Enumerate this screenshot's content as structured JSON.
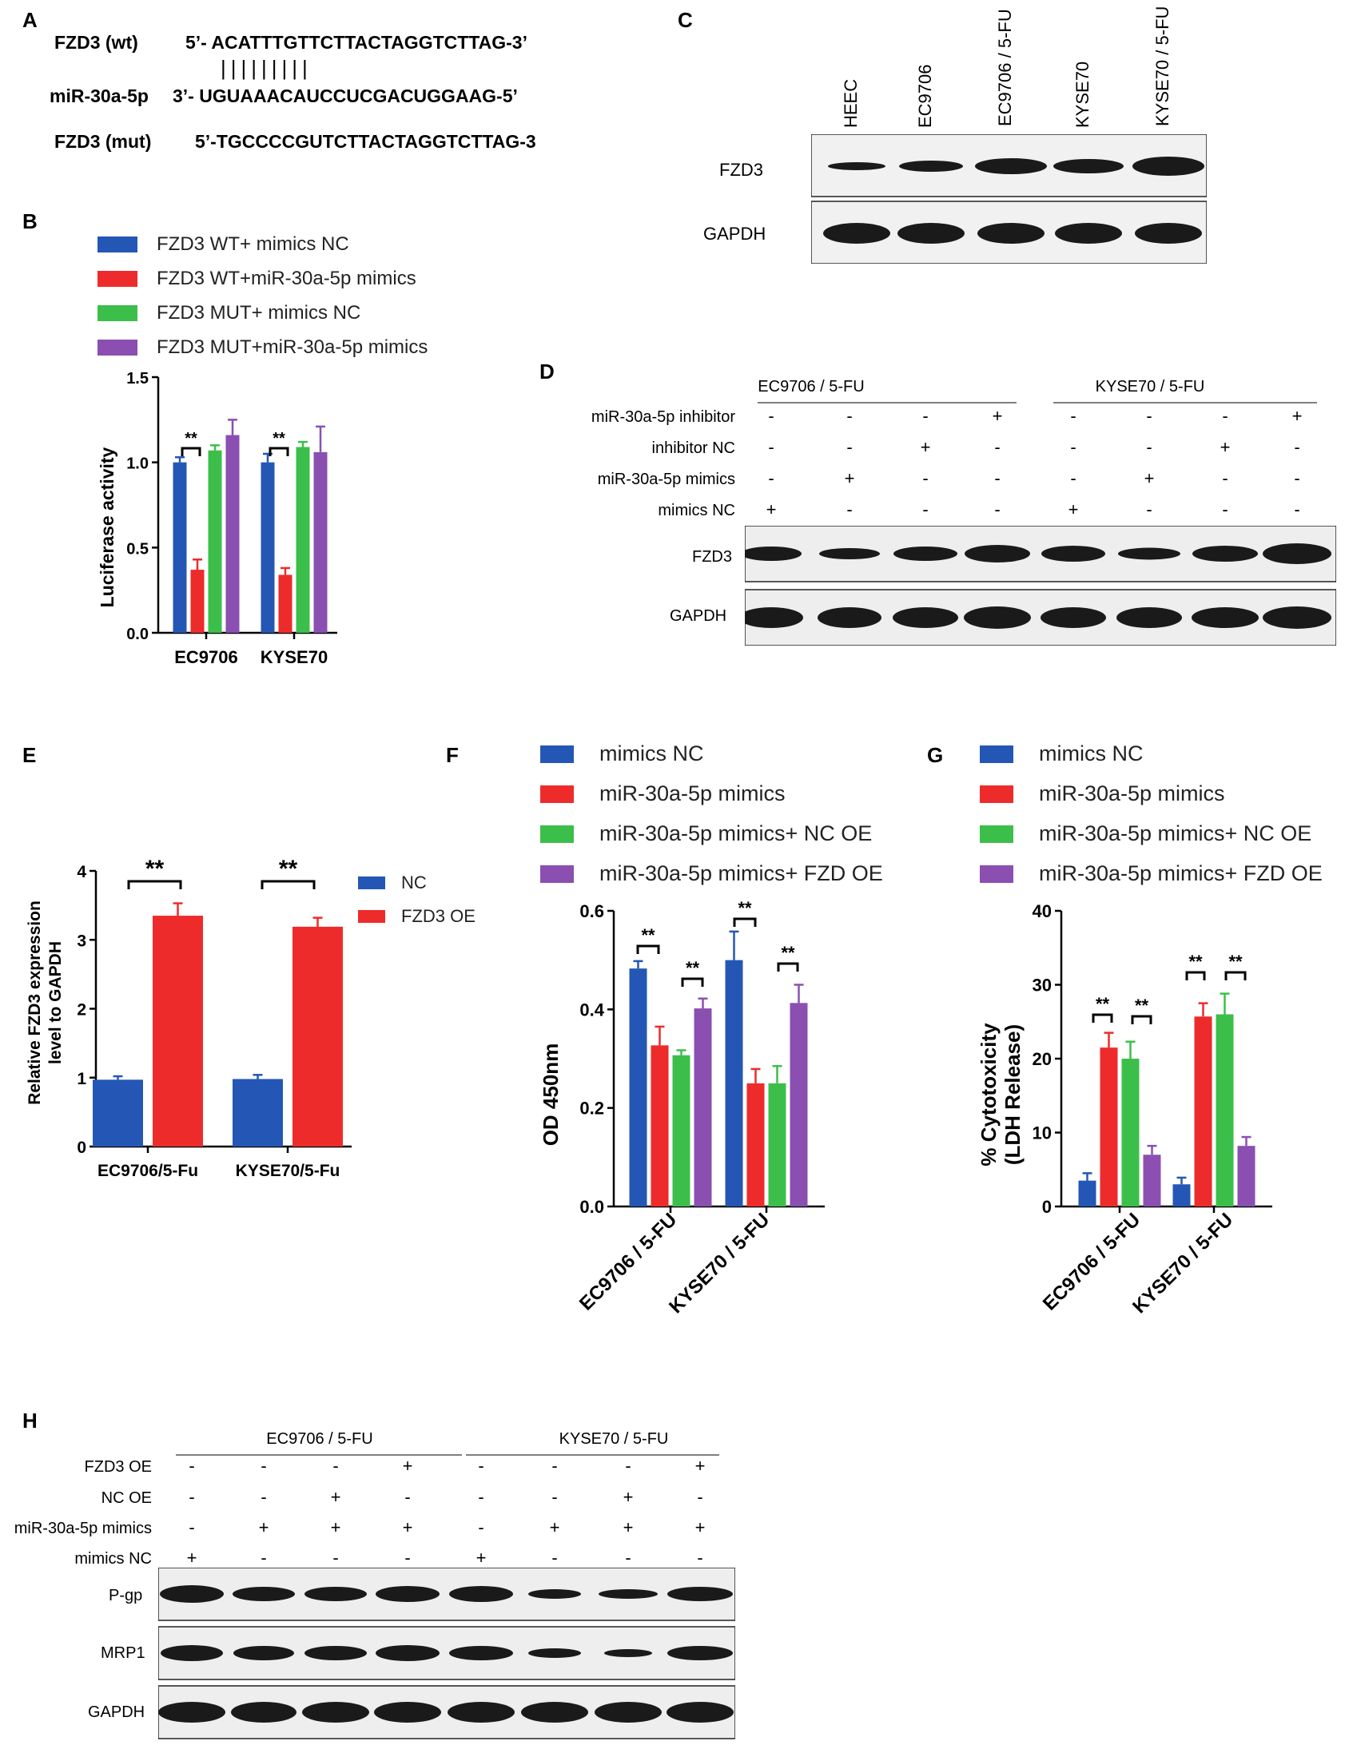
{
  "panels": {
    "A": "A",
    "B": "B",
    "C": "C",
    "D": "D",
    "E": "E",
    "F": "F",
    "G": "G",
    "H": "H"
  },
  "colors": {
    "blue": "#2457b5",
    "red": "#ee2b2b",
    "green": "#3cbf4a",
    "purple": "#8a4fb0",
    "band": "#1a1a1a"
  },
  "panel_a": {
    "rows": [
      {
        "label": "FZD3 (wt)",
        "seq": "5’- ACATTTGTTCTTACTAGGTCTTAG-3’"
      },
      {
        "label": "miR-30a-5p",
        "seq": "3’- UGUAAACAUCCUCGACUGGAAG-5’"
      },
      {
        "label": "FZD3 (mut)",
        "seq": "5’-TGCCCCGUTCTTACTAGGTCTTAG-3"
      }
    ],
    "pairing": "|||||||||"
  },
  "panel_b": {
    "legend": [
      "FZD3 WT+ mimics NC",
      "FZD3 WT+miR-30a-5p mimics",
      "FZD3 MUT+ mimics NC",
      "FZD3 MUT+miR-30a-5p mimics"
    ],
    "ylabel": "Luciferase activity",
    "yticks": [
      "0.0",
      "0.5",
      "1.0",
      "1.5"
    ],
    "sig": [
      "**",
      "**"
    ]
  },
  "panel_c": {
    "lanes": [
      "HEEC",
      "EC9706",
      "EC9706 / 5-FU",
      "KYSE70",
      "KYSE70 / 5-FU"
    ],
    "rows": [
      "FZD3",
      "GAPDH"
    ]
  },
  "panel_d": {
    "groups": [
      "EC9706 / 5-FU",
      "KYSE70 / 5-FU"
    ],
    "conditions": [
      {
        "label": "miR-30a-5p inhibitor",
        "signs": [
          "-",
          "-",
          "-",
          "+",
          "-",
          "-",
          "-",
          "+"
        ]
      },
      {
        "label": "inhibitor NC",
        "signs": [
          "-",
          "-",
          "+",
          "-",
          "-",
          "-",
          "+",
          "-"
        ]
      },
      {
        "label": "miR-30a-5p mimics",
        "signs": [
          "-",
          "+",
          "-",
          "-",
          "-",
          "+",
          "-",
          "-"
        ]
      },
      {
        "label": "mimics NC",
        "signs": [
          "+",
          "-",
          "-",
          "-",
          "+",
          "-",
          "-",
          "-"
        ]
      }
    ],
    "rows": [
      "FZD3",
      "GAPDH"
    ]
  },
  "panel_e": {
    "legend": [
      "NC",
      "FZD3 OE"
    ],
    "ylabel_line1": "Relative FZD3 expression",
    "ylabel_line2": "level to GAPDH",
    "yticks": [
      "0",
      "1",
      "2",
      "3",
      "4"
    ],
    "sig": [
      "**",
      "**"
    ]
  },
  "panel_f": {
    "legend": [
      "mimics NC",
      "miR-30a-5p mimics",
      "miR-30a-5p mimics+ NC OE",
      "miR-30a-5p mimics+ FZD OE"
    ],
    "ylabel": "OD 450nm",
    "yticks": [
      "0.0",
      "0.2",
      "0.4",
      "0.6"
    ],
    "sig": [
      "**",
      "**",
      "**",
      "**"
    ]
  },
  "panel_g": {
    "legend": [
      "mimics NC",
      "miR-30a-5p mimics",
      "miR-30a-5p mimics+ NC OE",
      "miR-30a-5p mimics+ FZD OE"
    ],
    "ylabel_line1": "% Cytotoxicity",
    "ylabel_line2": "(LDH Release)",
    "yticks": [
      "0",
      "10",
      "20",
      "30",
      "40"
    ],
    "sig": [
      "**",
      "**",
      "**",
      "**"
    ]
  },
  "panel_h": {
    "groups": [
      "EC9706 / 5-FU",
      "KYSE70 / 5-FU"
    ],
    "conditions": [
      {
        "label": "FZD3 OE",
        "signs": [
          "-",
          "-",
          "-",
          "+",
          "-",
          "-",
          "-",
          "+"
        ]
      },
      {
        "label": "NC OE",
        "signs": [
          "-",
          "-",
          "+",
          "-",
          "-",
          "-",
          "+",
          "-"
        ]
      },
      {
        "label": "miR-30a-5p mimics",
        "signs": [
          "-",
          "+",
          "+",
          "+",
          "-",
          "+",
          "+",
          "+"
        ]
      },
      {
        "label": "mimics NC",
        "signs": [
          "+",
          "-",
          "-",
          "-",
          "+",
          "-",
          "-",
          "-"
        ]
      }
    ],
    "rows": [
      "P-gp",
      "MRP1",
      "GAPDH"
    ]
  },
  "chart_data": [
    {
      "type": "bar",
      "id": "B",
      "categories": [
        "EC9706",
        "KYSE70"
      ],
      "ylabel": "Luciferase activity",
      "ylim": [
        0,
        1.5
      ],
      "series": [
        {
          "name": "FZD3 WT+ mimics NC",
          "values": [
            1.0,
            1.0
          ],
          "err": [
            0.03,
            0.05
          ]
        },
        {
          "name": "FZD3 WT+miR-30a-5p mimics",
          "values": [
            0.37,
            0.34
          ],
          "err": [
            0.06,
            0.04
          ]
        },
        {
          "name": "FZD3 MUT+ mimics NC",
          "values": [
            1.07,
            1.09
          ],
          "err": [
            0.03,
            0.03
          ]
        },
        {
          "name": "FZD3 MUT+miR-30a-5p mimics",
          "values": [
            1.16,
            1.06
          ],
          "err": [
            0.09,
            0.15
          ]
        }
      ]
    },
    {
      "type": "bar",
      "id": "E",
      "categories": [
        "EC9706/5-Fu",
        "KYSE70/5-Fu"
      ],
      "ylabel": "Relative FZD3 expression level to GAPDH",
      "ylim": [
        0,
        4
      ],
      "series": [
        {
          "name": "NC",
          "values": [
            0.97,
            0.98
          ],
          "err": [
            0.05,
            0.06
          ]
        },
        {
          "name": "FZD3 OE",
          "values": [
            3.35,
            3.19
          ],
          "err": [
            0.18,
            0.13
          ]
        }
      ]
    },
    {
      "type": "bar",
      "id": "F",
      "categories": [
        "EC9706 / 5-FU",
        "KYSE70 / 5-FU"
      ],
      "ylabel": "OD 450nm",
      "ylim": [
        0,
        0.6
      ],
      "series": [
        {
          "name": "mimics NC",
          "values": [
            0.483,
            0.5
          ],
          "err": [
            0.015,
            0.058
          ]
        },
        {
          "name": "miR-30a-5p mimics",
          "values": [
            0.327,
            0.25
          ],
          "err": [
            0.038,
            0.029
          ]
        },
        {
          "name": "miR-30a-5p mimics+ NC OE",
          "values": [
            0.307,
            0.25
          ],
          "err": [
            0.01,
            0.035
          ]
        },
        {
          "name": "miR-30a-5p mimics+ FZD OE",
          "values": [
            0.402,
            0.413
          ],
          "err": [
            0.02,
            0.037
          ]
        }
      ]
    },
    {
      "type": "bar",
      "id": "G",
      "categories": [
        "EC9706 / 5-FU",
        "KYSE70 / 5-FU"
      ],
      "ylabel": "% Cytotoxicity (LDH Release)",
      "ylim": [
        0,
        40
      ],
      "series": [
        {
          "name": "mimics NC",
          "values": [
            3.5,
            3.0
          ],
          "err": [
            1.0,
            0.9
          ]
        },
        {
          "name": "miR-30a-5p mimics",
          "values": [
            21.5,
            25.7
          ],
          "err": [
            2.0,
            1.8
          ]
        },
        {
          "name": "miR-30a-5p mimics+ NC OE",
          "values": [
            20.0,
            26.0
          ],
          "err": [
            2.3,
            2.8
          ]
        },
        {
          "name": "miR-30a-5p mimics+ FZD OE",
          "values": [
            7.0,
            8.2
          ],
          "err": [
            1.2,
            1.2
          ]
        }
      ]
    }
  ]
}
